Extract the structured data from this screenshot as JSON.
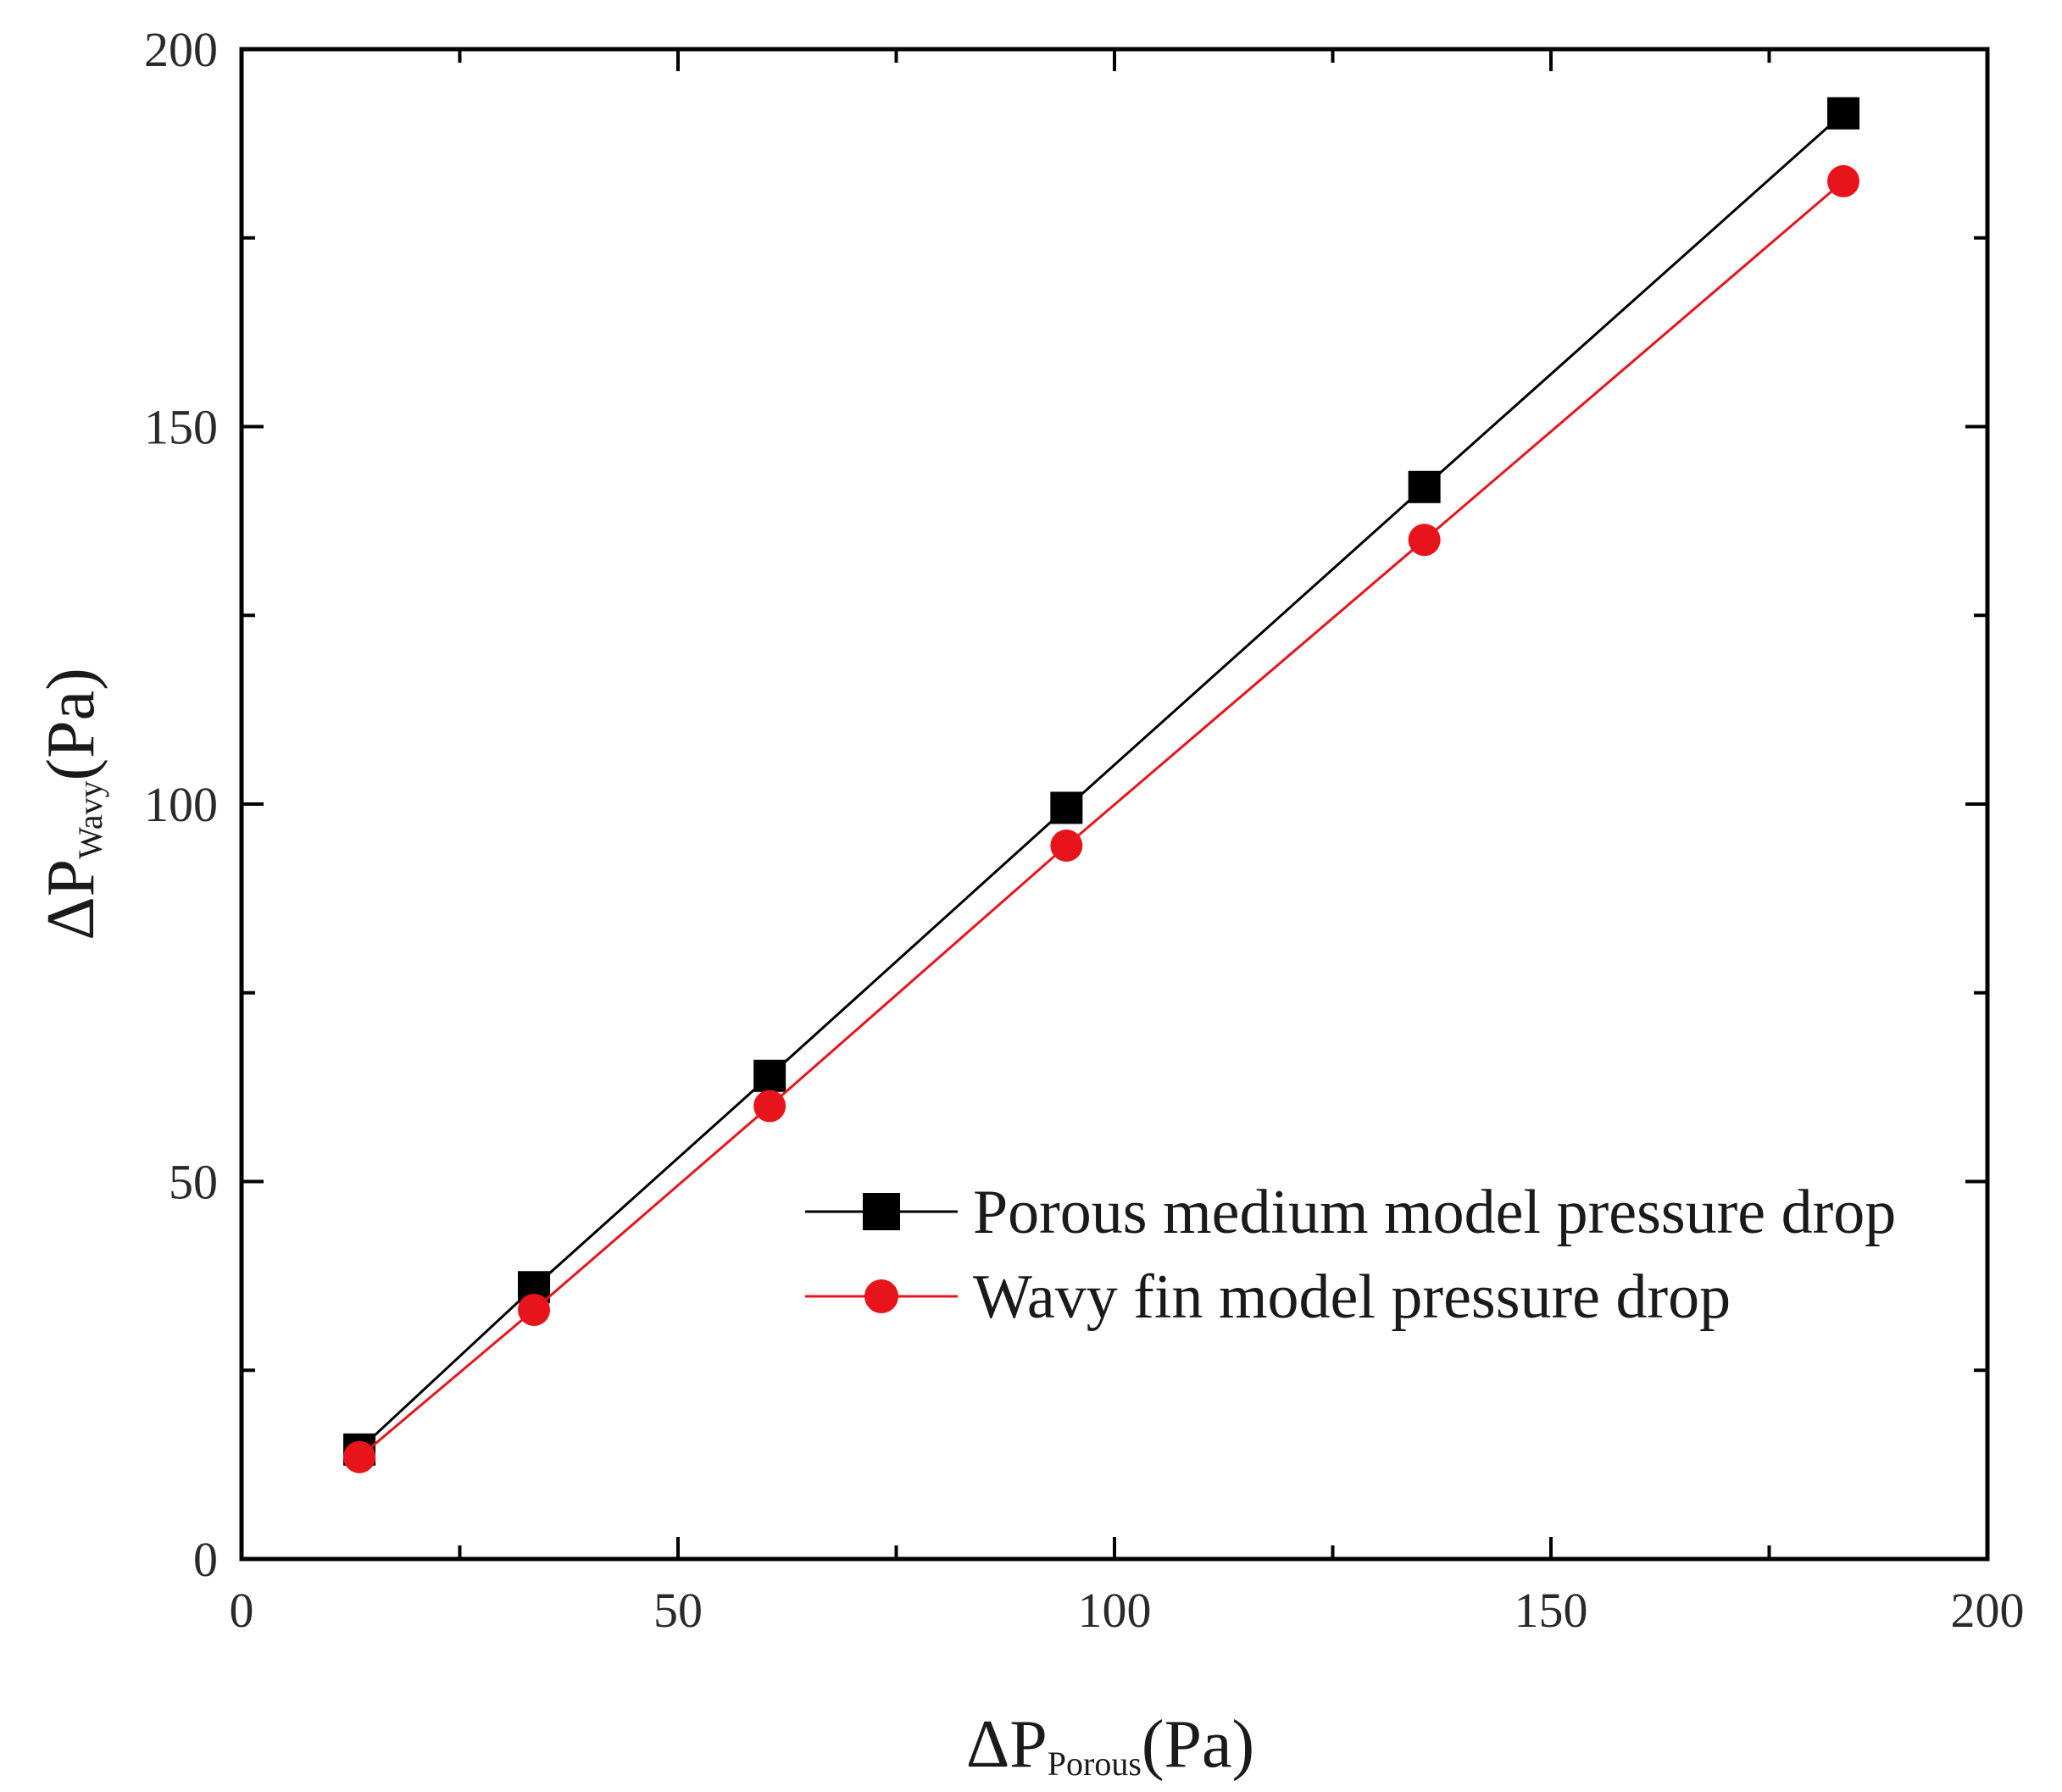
{
  "chart_data": {
    "type": "line",
    "title": "",
    "xlabel": {
      "prefix": "ΔP",
      "sub": "Porous",
      "suffix": "(Pa)"
    },
    "ylabel": {
      "prefix": "ΔP",
      "sub": "Wavy",
      "suffix": "(Pa)"
    },
    "xlim": [
      0,
      200
    ],
    "ylim": [
      0,
      200
    ],
    "xticks": [
      0,
      50,
      100,
      150,
      200
    ],
    "yticks": [
      0,
      50,
      100,
      150,
      200
    ],
    "grid": false,
    "legend_position": "lower-right",
    "series": [
      {
        "name": "Porous medium model pressure drop",
        "color": "#000000",
        "marker": "square",
        "x": [
          13.5,
          33.5,
          60.5,
          94.5,
          135.5,
          183.5
        ],
        "y": [
          14.5,
          36.0,
          64.0,
          99.5,
          142.0,
          191.5
        ]
      },
      {
        "name": "Wavy fin model pressure drop",
        "color": "#e8141c",
        "marker": "circle",
        "x": [
          13.5,
          33.5,
          60.5,
          94.5,
          135.5,
          183.5
        ],
        "y": [
          13.5,
          33.0,
          60.0,
          94.5,
          135.0,
          182.5
        ]
      }
    ]
  }
}
